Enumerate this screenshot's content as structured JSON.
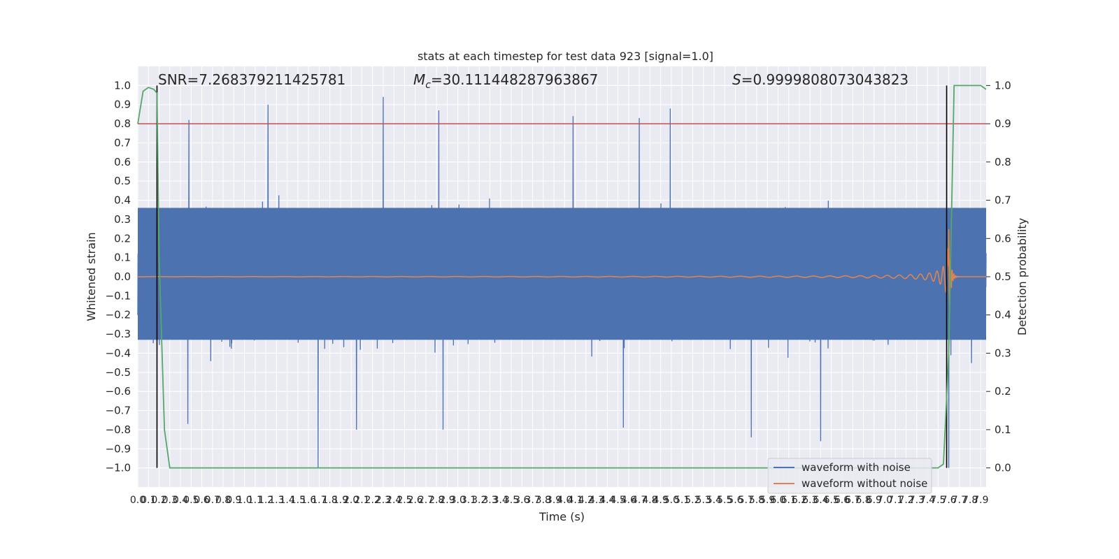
{
  "chart_data": {
    "type": "line",
    "title": "stats at each timestep for test data 923 [signal=1.0]",
    "xlabel": "Time (s)",
    "ylabel": "Whitened strain",
    "y2label": "Detection probability",
    "xlim": [
      0.0,
      7.95
    ],
    "ylim": [
      -1.1,
      1.1
    ],
    "y2lim": [
      -0.05,
      1.05
    ],
    "xticks": [
      0.0,
      0.1,
      0.2,
      0.3,
      0.4,
      0.5,
      0.6,
      0.7,
      0.8,
      0.9,
      1.0,
      1.1,
      1.2,
      1.3,
      1.4,
      1.5,
      1.6,
      1.7,
      1.8,
      1.9,
      2.0,
      2.1,
      2.2,
      2.3,
      2.4,
      2.5,
      2.6,
      2.7,
      2.8,
      2.9,
      3.0,
      3.1,
      3.2,
      3.3,
      3.4,
      3.5,
      3.6,
      3.7,
      3.8,
      3.9,
      4.0,
      4.1,
      4.2,
      4.3,
      4.4,
      4.5,
      4.6,
      4.7,
      4.8,
      4.9,
      5.0,
      5.1,
      5.2,
      5.3,
      5.4,
      5.5,
      5.6,
      5.7,
      5.8,
      5.9,
      6.0,
      6.1,
      6.2,
      6.3,
      6.4,
      6.5,
      6.6,
      6.7,
      6.8,
      6.9,
      7.0,
      7.1,
      7.2,
      7.3,
      7.4,
      7.5,
      7.6,
      7.7,
      7.8,
      7.9
    ],
    "yticks": [
      -1.0,
      -0.9,
      -0.8,
      -0.7,
      -0.6,
      -0.5,
      -0.4,
      -0.3,
      -0.2,
      -0.1,
      0.0,
      0.1,
      0.2,
      0.3,
      0.4,
      0.5,
      0.6,
      0.7,
      0.8,
      0.9,
      1.0
    ],
    "y2ticks": [
      0.0,
      0.1,
      0.2,
      0.3,
      0.4,
      0.5,
      0.6,
      0.7,
      0.8,
      0.9,
      1.0
    ],
    "threshold": {
      "axis": "right",
      "value": 0.9,
      "color": "#c44e52"
    },
    "vlines": [
      {
        "x": 0.18,
        "y2_from": 0.0,
        "y2_to": 1.0,
        "color": "#000000"
      },
      {
        "x": 7.58,
        "y2_from": 0.0,
        "y2_to": 1.0,
        "color": "#000000"
      }
    ],
    "series": [
      {
        "name": "waveform with noise",
        "axis": "left",
        "color": "#4c72b0",
        "style": "noise band",
        "core_band": [
          -0.33,
          0.36
        ],
        "typical_peak_envelope": [
          -0.65,
          0.7
        ],
        "notable_peaks": [
          {
            "x": 0.48,
            "y": 0.82
          },
          {
            "x": 1.22,
            "y": 0.9
          },
          {
            "x": 2.3,
            "y": 0.94
          },
          {
            "x": 2.82,
            "y": 0.87
          },
          {
            "x": 4.08,
            "y": 0.84
          },
          {
            "x": 4.7,
            "y": 0.83
          },
          {
            "x": 4.99,
            "y": 0.88
          },
          {
            "x": 1.69,
            "y": -1.0
          },
          {
            "x": 2.86,
            "y": -0.8
          },
          {
            "x": 4.55,
            "y": -0.79
          },
          {
            "x": 5.75,
            "y": -0.84
          },
          {
            "x": 6.4,
            "y": -0.86
          },
          {
            "x": 7.6,
            "y": -1.0
          },
          {
            "x": 0.47,
            "y": -0.77
          },
          {
            "x": 2.05,
            "y": -0.8
          }
        ]
      },
      {
        "name": "waveform without noise",
        "axis": "left",
        "color": "#dd8452",
        "style": "chirp",
        "coalescence_time": 7.6,
        "peak_amplitude": 0.25
      },
      {
        "name": "detection probability",
        "axis": "right",
        "color": "#55a868",
        "x": [
          0.0,
          0.05,
          0.1,
          0.15,
          0.18,
          0.2,
          0.25,
          0.3,
          7.45,
          7.5,
          7.55,
          7.6,
          7.65,
          7.7,
          7.75,
          7.8,
          7.85,
          7.9,
          7.95
        ],
        "y": [
          0.9,
          0.985,
          0.995,
          0.99,
          0.98,
          0.55,
          0.1,
          0.0,
          0.0,
          0.0,
          0.01,
          0.3,
          1.0,
          1.0,
          1.0,
          1.0,
          1.0,
          1.0,
          0.99
        ]
      }
    ],
    "legend": {
      "location": "lower-right",
      "entries": [
        {
          "label": "waveform with noise",
          "color": "#4c72b0"
        },
        {
          "label": "waveform without noise",
          "color": "#dd8452"
        }
      ]
    },
    "annotations": {
      "snr": {
        "label": "SNR",
        "value": "7.268379211425781",
        "text": "SNR=7.268379211425781"
      },
      "chirp_mass": {
        "symbol": "M",
        "subscript": "c",
        "value": "=30.111448287963867"
      },
      "statistic": {
        "symbol": "S",
        "value": "=0.9999808073043823"
      }
    },
    "grid": true
  }
}
